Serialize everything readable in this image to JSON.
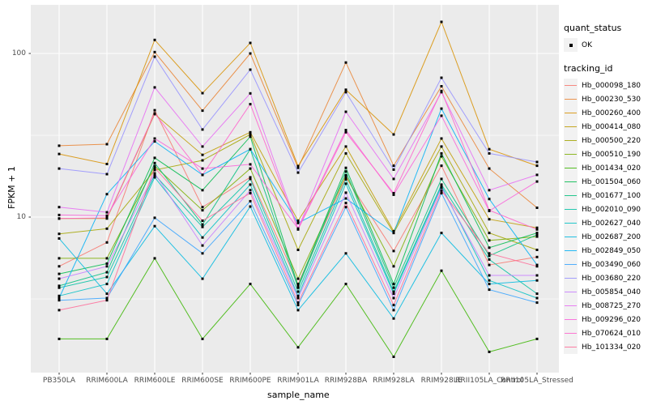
{
  "chart_data": {
    "type": "line",
    "xlabel": "sample_name",
    "ylabel": "FPKM + 1",
    "y_scale": "log10",
    "y_tick_labels": [
      "100",
      "10"
    ],
    "y_tick_values": [
      100,
      10
    ],
    "y_minor_gridline_values": [
      31.6,
      3.16
    ],
    "ylim": [
      1.1,
      200
    ],
    "grid": true,
    "legend_position": "right",
    "panel_bg": "#EBEBEB",
    "gridline_color": "#FFFFFF",
    "point_color": "#000000",
    "point_shape": "square",
    "categories": [
      "PB350LA",
      "RRIM600LA",
      "RRIM600LE",
      "RRIM600SE",
      "RRIM600PE",
      "RRIM901LA",
      "RRIM928BA",
      "RRIM928LA",
      "RRIM928LE",
      "RRII105LA_Control",
      "RRII105LA_Stressed"
    ],
    "series": [
      {
        "name": "Hb_000098_180",
        "color": "#F8766D",
        "values": [
          5.0,
          7.0,
          45.0,
          11.5,
          17.5,
          3.9,
          17.5,
          6.2,
          20.6,
          5.1,
          5.7
        ]
      },
      {
        "name": "Hb_000230_530",
        "color": "#EA8331",
        "values": [
          27.3,
          27.9,
          102.0,
          44.7,
          100.0,
          20.0,
          88.0,
          20.6,
          63.0,
          19.8,
          11.4
        ]
      },
      {
        "name": "Hb_000260_400",
        "color": "#D89000",
        "values": [
          24.3,
          21.1,
          121.0,
          57.2,
          116.0,
          20.5,
          60.0,
          32.0,
          156.0,
          26.0,
          20.6
        ]
      },
      {
        "name": "Hb_000414_080",
        "color": "#C09B00",
        "values": [
          9.8,
          9.8,
          42.6,
          24.0,
          33.0,
          9.5,
          27.0,
          8.2,
          30.2,
          9.7,
          8.6
        ]
      },
      {
        "name": "Hb_000500_220",
        "color": "#A3A500",
        "values": [
          7.9,
          8.5,
          19.4,
          22.2,
          32.0,
          6.3,
          24.5,
          8.0,
          27.0,
          8.0,
          6.3
        ]
      },
      {
        "name": "Hb_000510_190",
        "color": "#7CAE00",
        "values": [
          5.6,
          5.6,
          20.5,
          11.0,
          19.8,
          4.2,
          18.0,
          5.0,
          23.5,
          7.2,
          7.6
        ]
      },
      {
        "name": "Hb_001434_020",
        "color": "#39B600",
        "values": [
          1.8,
          1.8,
          5.6,
          1.8,
          3.9,
          1.6,
          3.9,
          1.4,
          4.7,
          1.5,
          1.8
        ]
      },
      {
        "name": "Hb_001504_060",
        "color": "#00BB4E",
        "values": [
          4.5,
          5.2,
          23.0,
          14.6,
          31.0,
          3.8,
          20.0,
          3.9,
          24.5,
          6.5,
          8.0
        ]
      },
      {
        "name": "Hb_001677_100",
        "color": "#00BF7D",
        "values": [
          3.8,
          4.6,
          21.4,
          9.0,
          26.0,
          3.7,
          19.0,
          3.7,
          17.1,
          5.8,
          7.8
        ]
      },
      {
        "name": "Hb_002010_090",
        "color": "#00C1A3",
        "values": [
          3.7,
          4.3,
          18.1,
          8.7,
          17.1,
          3.5,
          17.0,
          3.5,
          15.8,
          5.5,
          3.4
        ]
      },
      {
        "name": "Hb_002627_040",
        "color": "#00BFC4",
        "values": [
          3.3,
          3.9,
          17.5,
          7.5,
          15.8,
          3.3,
          16.0,
          3.4,
          15.5,
          4.1,
          3.2
        ]
      },
      {
        "name": "Hb_002687_200",
        "color": "#00BAE0",
        "values": [
          7.4,
          3.4,
          8.8,
          4.2,
          11.6,
          2.7,
          6.0,
          2.4,
          8.0,
          3.9,
          4.1
        ]
      },
      {
        "name": "Hb_002849_050",
        "color": "#00B0F6",
        "values": [
          3.2,
          13.8,
          29.0,
          18.1,
          26.0,
          9.2,
          13.0,
          8.0,
          46.0,
          12.9,
          5.1
        ]
      },
      {
        "name": "Hb_003490_060",
        "color": "#35A2FF",
        "values": [
          3.1,
          3.2,
          9.9,
          6.0,
          12.5,
          2.9,
          11.5,
          2.7,
          14.0,
          3.6,
          3.0
        ]
      },
      {
        "name": "Hb_003680_220",
        "color": "#9590FF",
        "values": [
          19.8,
          18.3,
          95.5,
          34.3,
          79.6,
          18.7,
          58.0,
          19.5,
          71.0,
          24.5,
          21.7
        ]
      },
      {
        "name": "Hb_005854_040",
        "color": "#C77CFF",
        "values": [
          4.2,
          5.0,
          18.5,
          6.7,
          14.6,
          3.2,
          14.1,
          3.2,
          15.1,
          4.4,
          4.4
        ]
      },
      {
        "name": "Hb_008725_270",
        "color": "#E76BF3",
        "values": [
          11.5,
          10.7,
          62.0,
          27.0,
          57.0,
          8.5,
          44.0,
          17.1,
          58.0,
          14.6,
          18.1
        ]
      },
      {
        "name": "Hb_009296_020",
        "color": "#FA62DB",
        "values": [
          10.3,
          10.2,
          30.2,
          19.8,
          21.0,
          8.5,
          34.0,
          13.7,
          41.6,
          10.9,
          16.5
        ]
      },
      {
        "name": "Hb_070624_010",
        "color": "#FF61CC",
        "values": [
          9.8,
          9.9,
          43.0,
          18.1,
          49.0,
          8.4,
          33.0,
          14.0,
          59.0,
          11.0,
          8.4
        ]
      },
      {
        "name": "Hb_101334_020",
        "color": "#FF6A98",
        "values": [
          2.7,
          3.1,
          20.0,
          9.5,
          14.0,
          3.0,
          12.2,
          2.9,
          14.5,
          6.0,
          5.0
        ]
      }
    ]
  },
  "legend": {
    "quant_status": {
      "title": "quant_status",
      "items": [
        {
          "label": "OK",
          "marker": "black-point"
        }
      ]
    },
    "tracking_id": {
      "title": "tracking_id"
    }
  }
}
